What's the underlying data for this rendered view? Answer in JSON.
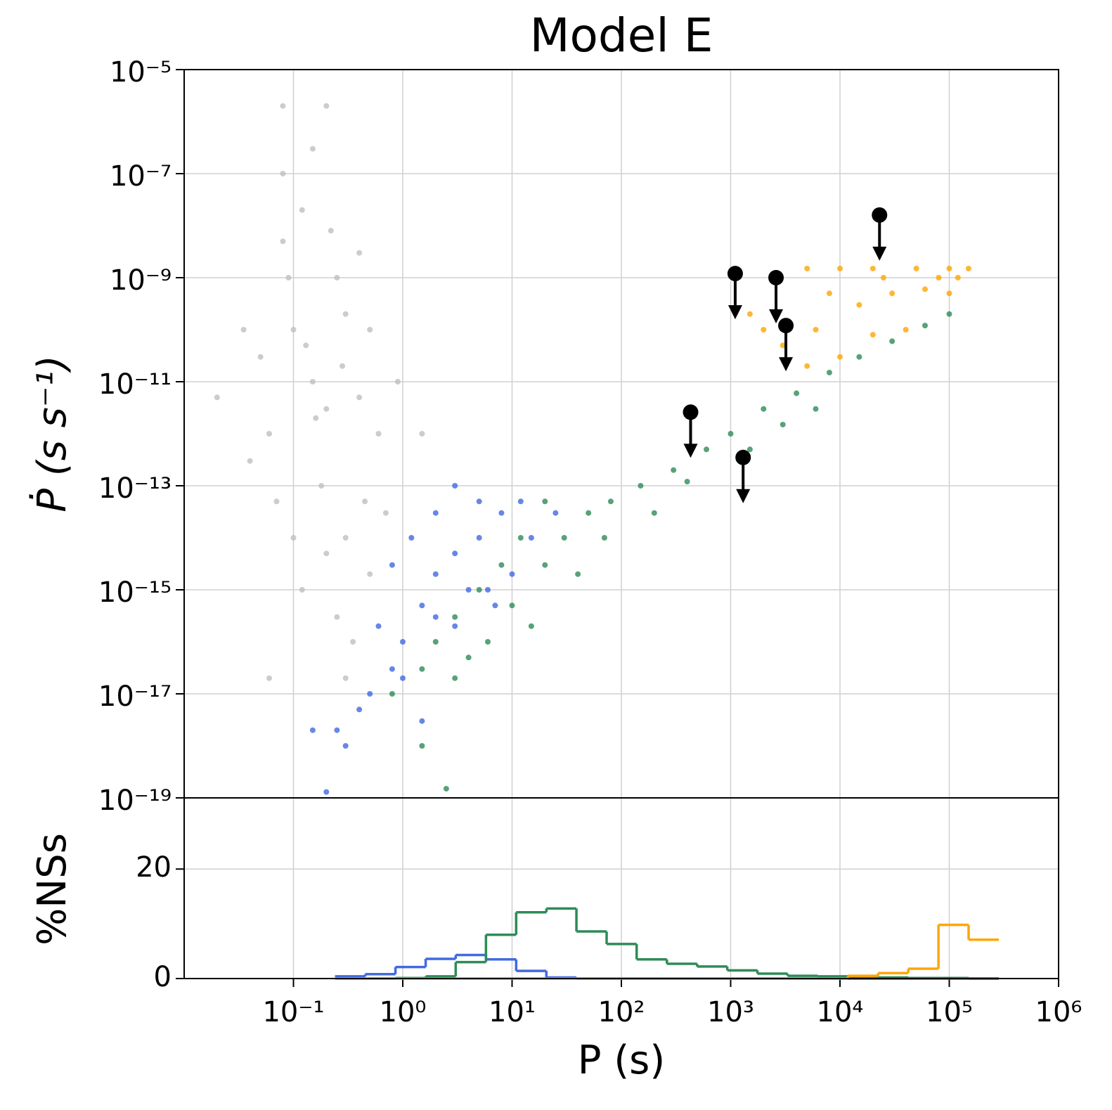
{
  "chart_data": [
    {
      "type": "scatter",
      "title": "Model E",
      "ylabel": "Ṗ (s s⁻¹)",
      "xscale": "log",
      "yscale": "log",
      "grid": true,
      "ylim": [
        1e-19,
        1e-05
      ],
      "yticks": [
        {
          "value": 1e-05,
          "label": "10⁻⁵"
        },
        {
          "value": 1e-07,
          "label": "10⁻⁷"
        },
        {
          "value": 1e-09,
          "label": "10⁻⁹"
        },
        {
          "value": 1e-11,
          "label": "10⁻¹¹"
        },
        {
          "value": 1e-13,
          "label": "10⁻¹³"
        },
        {
          "value": 1e-15,
          "label": "10⁻¹⁵"
        },
        {
          "value": 1e-17,
          "label": "10⁻¹⁷"
        },
        {
          "value": 1e-19,
          "label": "10⁻¹⁹"
        }
      ],
      "series": [
        {
          "color": "#bfbfbf",
          "x": [
            0.15,
            0.1,
            0.2,
            0.08,
            0.12,
            0.25,
            0.3,
            0.05,
            0.06,
            0.18,
            0.4,
            0.5,
            0.035,
            0.04,
            0.1,
            0.2,
            0.3,
            0.15,
            0.08,
            0.6,
            0.7,
            0.25,
            0.35,
            0.12,
            0.45,
            0.02,
            0.09,
            0.22,
            0.13,
            0.28,
            0.16,
            0.07,
            0.5,
            0.4,
            0.9,
            0.08,
            0.2,
            1.5,
            0.06,
            0.3
          ],
          "values": [
            1e-11,
            1e-10,
            3e-12,
            5e-09,
            2e-08,
            1e-09,
            2e-10,
            3e-11,
            1e-12,
            1e-13,
            5e-12,
            1e-10,
            1e-10,
            3e-13,
            1e-14,
            5e-15,
            1e-14,
            3e-07,
            1e-07,
            1e-12,
            3e-14,
            3e-16,
            1e-16,
            1e-15,
            5e-14,
            5e-12,
            1e-09,
            8e-09,
            5e-11,
            2e-11,
            2e-12,
            5e-14,
            2e-15,
            3e-09,
            1e-11,
            2e-06,
            2e-06,
            1e-12,
            2e-17,
            2e-17
          ]
        },
        {
          "color": "#4169e1",
          "x": [
            0.5,
            0.8,
            1,
            1.5,
            2,
            3,
            5,
            8,
            12,
            4,
            2,
            1,
            0.4,
            0.6,
            3,
            6,
            10,
            15,
            5,
            3,
            2,
            1.2,
            0.8,
            0.3,
            0.2,
            1.5,
            0.25,
            25,
            7,
            0.15
          ],
          "values": [
            1e-17,
            3e-17,
            1e-16,
            5e-16,
            2e-15,
            5e-15,
            1e-14,
            3e-14,
            5e-14,
            1e-15,
            3e-16,
            2e-17,
            5e-18,
            2e-16,
            2e-16,
            1e-15,
            2e-15,
            1e-14,
            5e-14,
            1e-13,
            3e-14,
            1e-14,
            3e-15,
            1e-18,
            1.3e-19,
            3e-18,
            2e-18,
            3e-14,
            5e-16,
            2e-18
          ]
        },
        {
          "color": "#2e8b57",
          "x": [
            0.8,
            1.5,
            2,
            3,
            5,
            8,
            12,
            20,
            10,
            6,
            4,
            3,
            15,
            30,
            50,
            80,
            150,
            300,
            600,
            1000,
            2000,
            4000,
            8000,
            15000,
            30000,
            60000,
            100000,
            40,
            70,
            200,
            400,
            1500,
            3000,
            6000,
            20,
            1.5,
            2.5
          ],
          "values": [
            1e-17,
            3e-17,
            1e-16,
            3e-16,
            1e-15,
            3e-15,
            1e-14,
            3e-15,
            5e-16,
            1e-16,
            5e-17,
            2e-17,
            2e-16,
            1e-14,
            3e-14,
            5e-14,
            1e-13,
            2e-13,
            5e-13,
            1e-12,
            3e-12,
            6e-12,
            1.5e-11,
            3e-11,
            6e-11,
            1.2e-10,
            2e-10,
            2e-15,
            1e-14,
            3e-14,
            1.2e-13,
            5e-13,
            1.5e-12,
            3e-12,
            5e-14,
            1e-18,
            1.5e-19
          ]
        },
        {
          "color": "#ffa500",
          "x": [
            10000,
            20000,
            50000,
            100000,
            150000,
            5000,
            8000,
            15000,
            30000,
            60000,
            100000,
            40000,
            20000,
            10000,
            5000,
            3000,
            2000,
            1500,
            120000,
            80000,
            25000,
            6000
          ],
          "values": [
            1.5e-09,
            1.5e-09,
            1.5e-09,
            1.5e-09,
            1.5e-09,
            1.5e-09,
            5e-10,
            3e-10,
            5e-10,
            6e-10,
            5e-10,
            1e-10,
            8e-11,
            3e-11,
            2e-11,
            5e-11,
            1e-10,
            2e-10,
            1e-09,
            1e-09,
            1e-09,
            1e-10
          ]
        },
        {
          "color": "#000000",
          "upper_limit": true,
          "x": [
            1100,
            2600,
            3200,
            430,
            1300,
            23000
          ],
          "values": [
            1.2e-09,
            1e-09,
            1.2e-10,
            2.6e-12,
            3.5e-13,
            1.6e-08
          ]
        }
      ]
    },
    {
      "type": "histogram",
      "xlabel": "P (s)",
      "ylabel": "%NSs",
      "xscale": "log",
      "grid": true,
      "xlim": [
        0.01,
        1000000
      ],
      "xticks": [
        {
          "value": 0.1,
          "label": "10⁻¹"
        },
        {
          "value": 1,
          "label": "10⁰"
        },
        {
          "value": 10,
          "label": "10¹"
        },
        {
          "value": 100,
          "label": "10²"
        },
        {
          "value": 1000,
          "label": "10³"
        },
        {
          "value": 10000,
          "label": "10⁴"
        },
        {
          "value": 100000,
          "label": "10⁵"
        },
        {
          "value": 1000000,
          "label": "10⁶"
        }
      ],
      "ylim": [
        0,
        33
      ],
      "yticks": [
        0,
        20
      ],
      "bins": [
        0.24,
        0.454,
        0.857,
        1.62,
        3.05,
        5.77,
        10.9,
        20.6,
        38.8,
        73.3,
        138,
        261,
        493,
        931,
        1758,
        3319,
        6266,
        11830,
        22340,
        42170,
        79620,
        150300,
        283800
      ],
      "series": [
        {
          "color": "#4169e1",
          "values": [
            0.4,
            0.8,
            2.1,
            3.6,
            4.3,
            3.5,
            1.4,
            0.2,
            0,
            0,
            0,
            0,
            0,
            0,
            0,
            0,
            0,
            0,
            0,
            0,
            0,
            0
          ]
        },
        {
          "color": "#2e8b57",
          "values": [
            0,
            0,
            0.1,
            0.4,
            3.0,
            8.0,
            12.1,
            12.8,
            8.6,
            6.3,
            3.5,
            2.7,
            2.2,
            1.5,
            0.9,
            0.5,
            0.4,
            0.3,
            0.2,
            0.1,
            0.1,
            0
          ]
        },
        {
          "color": "#ffa500",
          "values": [
            0,
            0,
            0,
            0,
            0,
            0,
            0,
            0,
            0,
            0,
            0,
            0,
            0,
            0,
            0,
            0,
            0,
            0.5,
            1.0,
            1.8,
            9.8,
            7.1
          ]
        }
      ]
    }
  ]
}
